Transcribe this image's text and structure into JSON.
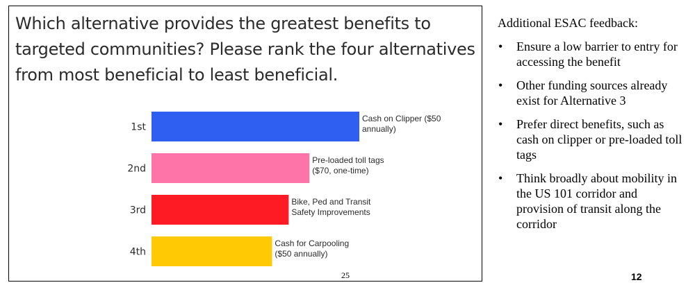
{
  "slide": {
    "title": "Which alternative provides the greatest benefits to targeted communities? Please rank the four alternatives from most beneficial to least beneficial.",
    "page_number": "25"
  },
  "chart_data": {
    "type": "bar",
    "orientation": "horizontal",
    "title": "Which alternative provides the greatest benefits to targeted communities? Please rank the four alternatives from most beneficial to least beneficial.",
    "categories": [
      "1st",
      "2nd",
      "3rd",
      "4th"
    ],
    "bar_labels": [
      [
        "Cash on Clipper ($50",
        "annually)"
      ],
      [
        "Pre-loaded toll tags",
        "($70, one-time)"
      ],
      [
        "Bike, Ped and Transit",
        "Safety Improvements"
      ],
      [
        "Cash for Carpooling",
        "($50 annually)"
      ]
    ],
    "values": [
      100,
      76,
      66,
      58
    ],
    "colors": [
      "#2f5ff0",
      "#ff74a8",
      "#fe1b23",
      "#ffc904"
    ],
    "xlabel": "",
    "ylabel": "",
    "xlim": [
      0,
      100
    ],
    "grid": false,
    "legend": "none"
  },
  "feedback": {
    "heading": "Additional ESAC feedback:",
    "bullet_symbol": "•",
    "items": [
      "Ensure a low barrier to entry for accessing the benefit",
      "Other funding sources already exist for Alternative 3",
      "Prefer direct benefits, such as cash on clipper or pre-loaded toll tags",
      "Think broadly about mobility in the US 101 corridor and provision of transit along the corridor"
    ]
  },
  "page_number": "12"
}
